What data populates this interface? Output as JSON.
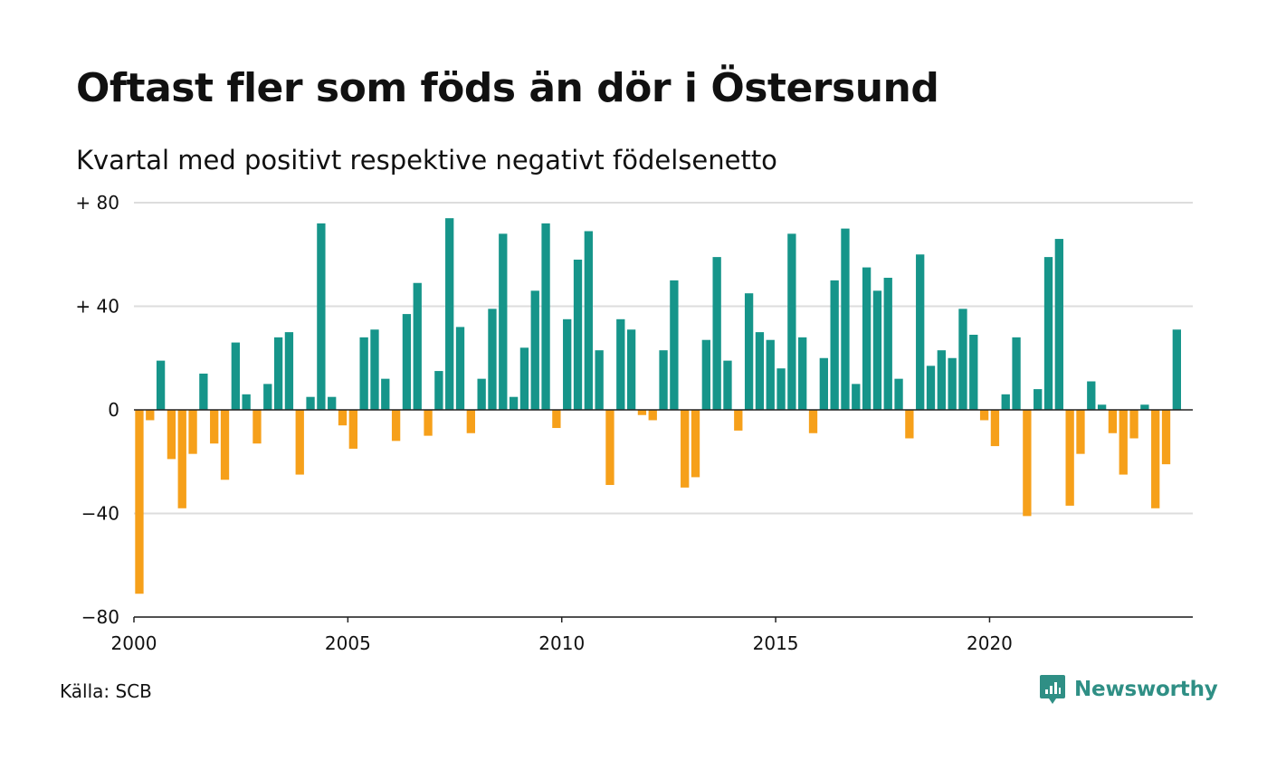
{
  "title": "Oftast fler som föds än dör i Östersund",
  "subtitle": "Kvartal med positivt respektive negativt födelsenetto",
  "source": "Källa: SCB",
  "brand": {
    "name": "Newsworthy",
    "icon": "newsworthy-logo-icon",
    "color": "#2f8f85"
  },
  "colors": {
    "positive": "#16958a",
    "negative": "#f6a01a",
    "grid": "#dddddd",
    "zero_line": "#222222"
  },
  "chart_data": {
    "type": "bar",
    "title": "Oftast fler som föds än dör i Östersund",
    "subtitle": "Kvartal med positivt respektive negativt födelsenetto",
    "x_start": 2000,
    "ylim": [
      -80,
      80
    ],
    "xlim": [
      2000,
      2024.75
    ],
    "grid": true,
    "yticks": [
      {
        "value": 80,
        "label": "+ 80"
      },
      {
        "value": 40,
        "label": "+ 40"
      },
      {
        "value": 0,
        "label": "0"
      },
      {
        "value": -40,
        "label": "−40"
      },
      {
        "value": -80,
        "label": "−80"
      }
    ],
    "xticks": [
      {
        "value": 2000,
        "label": "2000"
      },
      {
        "value": 2005,
        "label": "2005"
      },
      {
        "value": 2010,
        "label": "2010"
      },
      {
        "value": 2015,
        "label": "2015"
      },
      {
        "value": 2020,
        "label": "2020"
      }
    ],
    "values": [
      -71,
      -4,
      19,
      -19,
      -38,
      -17,
      14,
      -13,
      -27,
      26,
      6,
      -13,
      10,
      28,
      30,
      -25,
      5,
      72,
      5,
      -6,
      -15,
      28,
      31,
      12,
      -12,
      37,
      49,
      -10,
      15,
      74,
      32,
      -9,
      12,
      39,
      68,
      5,
      24,
      46,
      72,
      -7,
      35,
      58,
      69,
      23,
      -29,
      35,
      31,
      -2,
      -4,
      23,
      50,
      -30,
      -26,
      27,
      59,
      19,
      -8,
      45,
      30,
      27,
      16,
      68,
      28,
      -9,
      20,
      50,
      70,
      10,
      55,
      46,
      51,
      12,
      -11,
      60,
      17,
      23,
      20,
      39,
      29,
      -4,
      -14,
      6,
      28,
      -41,
      8,
      59,
      66,
      -37,
      -17,
      11,
      2,
      -9,
      -25,
      -11,
      2,
      -38,
      -21,
      31
    ]
  }
}
